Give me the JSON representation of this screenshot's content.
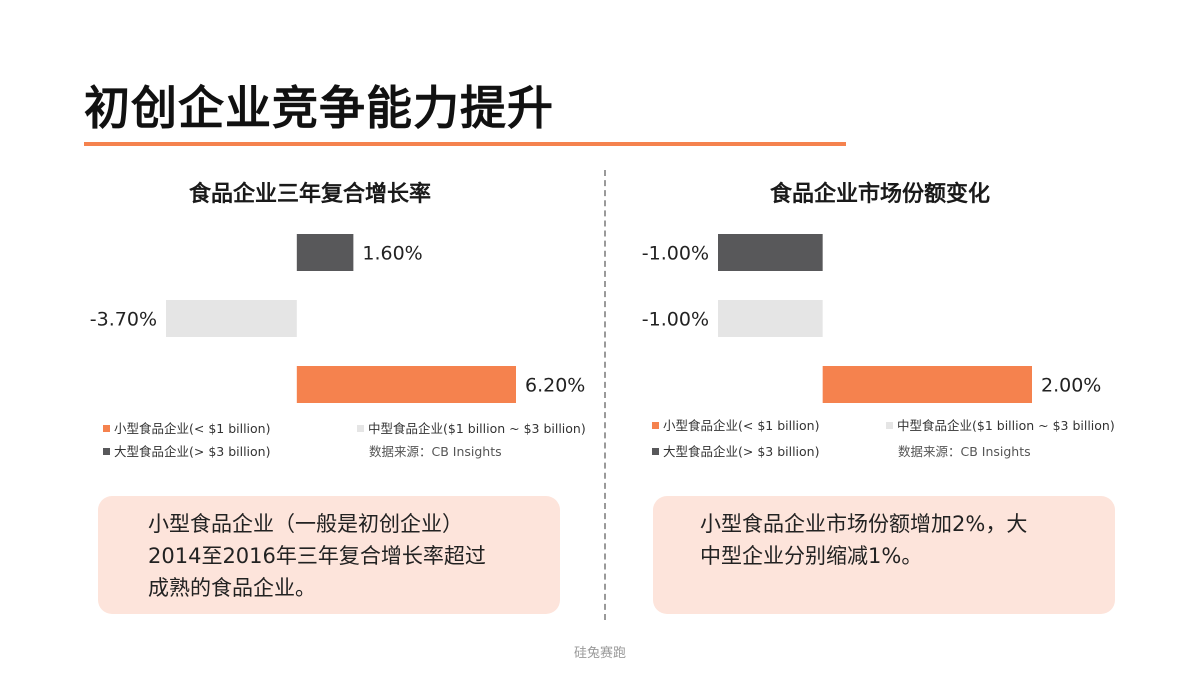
{
  "page_title": "初创企业竞争能力提升",
  "watermark": "硅兔赛跑",
  "colors": {
    "accent": "#f5824e",
    "dark": "#58585a",
    "light": "#e5e5e5",
    "callout_bg": "#fde4db"
  },
  "chart_data": [
    {
      "type": "bar",
      "orientation": "horizontal",
      "title": "食品企业三年复合增长率",
      "categories": [
        "大型食品企业(> $3 billion)",
        "中型食品企业($1 billion ~ $3 billion)",
        "小型食品企业(< $1 billion)"
      ],
      "values": [
        1.6,
        -3.7,
        6.2
      ],
      "value_labels": [
        "1.60%",
        "-3.70%",
        "6.20%"
      ],
      "colors": [
        "#58585a",
        "#e5e5e5",
        "#f5824e"
      ],
      "unit": "%",
      "xlim": [
        -3.7,
        6.2
      ]
    },
    {
      "type": "bar",
      "orientation": "horizontal",
      "title": "食品企业市场份额变化",
      "categories": [
        "大型食品企业(> $3 billion)",
        "中型食品企业($1 billion ~ $3 billion)",
        "小型食品企业(< $1 billion)"
      ],
      "values": [
        -1.0,
        -1.0,
        2.0
      ],
      "value_labels": [
        "-1.00%",
        "-1.00%",
        "2.00%"
      ],
      "colors": [
        "#58585a",
        "#e5e5e5",
        "#f5824e"
      ],
      "unit": "%",
      "xlim": [
        -1.0,
        2.0
      ]
    }
  ],
  "legend": {
    "small": "小型食品企业(< $1 billion)",
    "medium": "中型食品企业($1 billion ~ $3 billion)",
    "large": "大型食品企业(> $3 billion)",
    "source": "数据来源：CB Insights"
  },
  "callouts": {
    "left": [
      "小型食品企业（一般是初创企业）",
      "2014至2016年三年复合增长率超过",
      "成熟的食品企业。"
    ],
    "right": [
      "小型食品企业市场份额增加2%，大",
      "中型企业分别缩减1%。"
    ]
  }
}
